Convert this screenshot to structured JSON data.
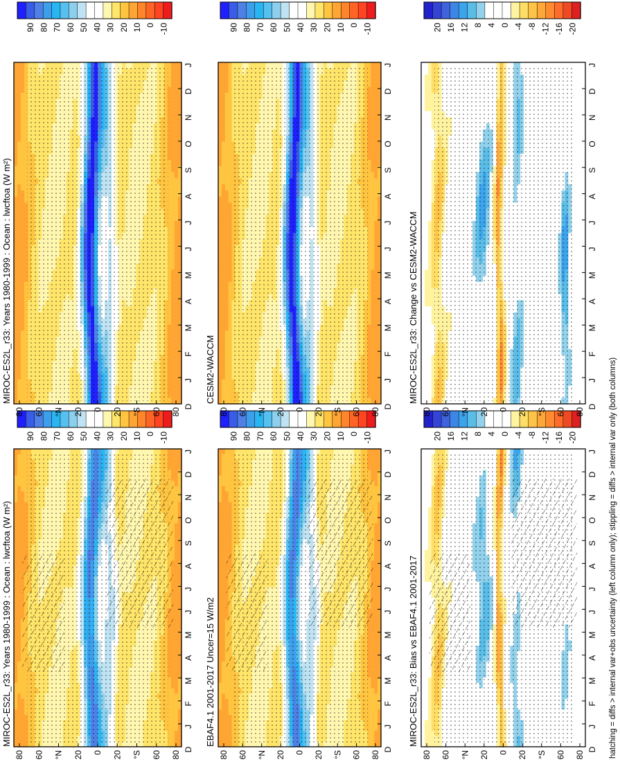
{
  "footnote": "hatching = diffs > internal var+obs uncertainty (left column only); stippling = diffs > internal var only (both columns)",
  "colors": {
    "abs_scale": [
      "#2020ff",
      "#3a5de8",
      "#4f80e6",
      "#3d9fec",
      "#29b5f2",
      "#56c0f0",
      "#8dd0ee",
      "#bfe3f3",
      "#ffffff",
      "#ffffff",
      "#fff7b0",
      "#ffe56a",
      "#ffc540",
      "#ffa533",
      "#ff852a",
      "#ff6426",
      "#ff4422",
      "#ee1c1c"
    ],
    "diff_scale": [
      "#2222cc",
      "#3344d6",
      "#3f63dd",
      "#3d86e6",
      "#3ca4ec",
      "#5abde8",
      "#92d2ec",
      "#ffffff",
      "#ffffff",
      "#ffffff",
      "#fff3a0",
      "#ffde66",
      "#ffc447",
      "#ffa83a",
      "#ff8a30",
      "#ff6c29",
      "#f04a24",
      "#dd2020"
    ]
  },
  "chart_data": [
    {
      "type": "heatmap",
      "panel": "top-left",
      "title": "MIROC-ES2L_r33: Years 1980-1999 : Ocean : lwcftoa (W m²)",
      "x_ticks": [
        "D",
        "J",
        "F",
        "M",
        "A",
        "M",
        "J",
        "J",
        "A",
        "S",
        "O",
        "N",
        "D",
        "J"
      ],
      "y_ticks": [
        "80",
        "60",
        "°N",
        "20",
        "0",
        "20",
        "°S",
        "60",
        "80"
      ],
      "colorbar": {
        "labels": [
          "90",
          "80",
          "70",
          "60",
          "50",
          "40",
          "30",
          "20",
          "10",
          "0",
          "-10"
        ],
        "range": [
          -15,
          95
        ]
      },
      "overlays": [
        "hatching",
        "stippling"
      ]
    },
    {
      "type": "heatmap",
      "panel": "top-right",
      "title": "MIROC-ES2L_r33: Years 1980-1999 : Ocean : lwcftoa (W m²)",
      "x_ticks": [
        "D",
        "J",
        "F",
        "M",
        "A",
        "M",
        "J",
        "J",
        "A",
        "S",
        "O",
        "N",
        "D",
        "J"
      ],
      "y_ticks": [
        "80",
        "60",
        "°N",
        "20",
        "0",
        "20",
        "°S",
        "60",
        "80"
      ],
      "colorbar": {
        "labels": [
          "90",
          "80",
          "70",
          "60",
          "50",
          "40",
          "30",
          "20",
          "10",
          "0",
          "-10"
        ],
        "range": [
          -15,
          95
        ]
      },
      "overlays": [
        "stippling"
      ]
    },
    {
      "type": "heatmap",
      "panel": "middle-left",
      "title": "EBAF4.1 2001-2017 Uncer=15 W/m2",
      "x_ticks": [
        "D",
        "J",
        "F",
        "M",
        "A",
        "M",
        "J",
        "J",
        "A",
        "S",
        "O",
        "N",
        "D",
        "J"
      ],
      "y_ticks": [
        "80",
        "60",
        "°N",
        "20",
        "0",
        "20",
        "°S",
        "60",
        "80"
      ],
      "colorbar": {
        "labels": [
          "90",
          "80",
          "70",
          "60",
          "50",
          "40",
          "30",
          "20",
          "10",
          "0",
          "-10"
        ],
        "range": [
          -15,
          95
        ]
      },
      "overlays": [
        "hatching",
        "stippling"
      ]
    },
    {
      "type": "heatmap",
      "panel": "middle-right",
      "title": "CESM2-WACCM",
      "x_ticks": [
        "D",
        "J",
        "F",
        "M",
        "A",
        "M",
        "J",
        "J",
        "A",
        "S",
        "O",
        "N",
        "D",
        "J"
      ],
      "y_ticks": [
        "80",
        "60",
        "°N",
        "20",
        "0",
        "20",
        "°S",
        "60",
        "80"
      ],
      "colorbar": {
        "labels": [
          "90",
          "80",
          "70",
          "60",
          "50",
          "40",
          "30",
          "20",
          "10",
          "0",
          "-10"
        ],
        "range": [
          -15,
          95
        ]
      },
      "overlays": [
        "stippling"
      ]
    },
    {
      "type": "heatmap",
      "panel": "bottom-left",
      "title": "MIROC-ES2L_r33: Bias vs EBAF4.1 2001-2017",
      "x_ticks": [
        "D",
        "J",
        "F",
        "M",
        "A",
        "M",
        "J",
        "J",
        "A",
        "S",
        "O",
        "N",
        "D",
        "J"
      ],
      "y_ticks": [
        "80",
        "60",
        "°N",
        "20",
        "0",
        "20",
        "°S",
        "60",
        "80"
      ],
      "colorbar": {
        "labels": [
          "20",
          "16",
          "12",
          "8",
          "4",
          "0",
          "-4",
          "-8",
          "-12",
          "-16",
          "-20"
        ],
        "range": [
          -24,
          24
        ]
      },
      "overlays": [
        "hatching",
        "stippling"
      ]
    },
    {
      "type": "heatmap",
      "panel": "bottom-right",
      "title": "MIROC-ES2L_r33: Change vs CESM2-WACCM",
      "x_ticks": [
        "D",
        "J",
        "F",
        "M",
        "A",
        "M",
        "J",
        "J",
        "A",
        "S",
        "O",
        "N",
        "D",
        "J"
      ],
      "y_ticks": [
        "80",
        "60",
        "°N",
        "20",
        "0",
        "20",
        "°S",
        "60",
        "80"
      ],
      "colorbar": {
        "labels": [
          "20",
          "16",
          "12",
          "8",
          "4",
          "0",
          "-4",
          "-8",
          "-12",
          "-16",
          "-20"
        ],
        "range": [
          -24,
          24
        ]
      },
      "overlays": [
        "stippling"
      ]
    }
  ]
}
